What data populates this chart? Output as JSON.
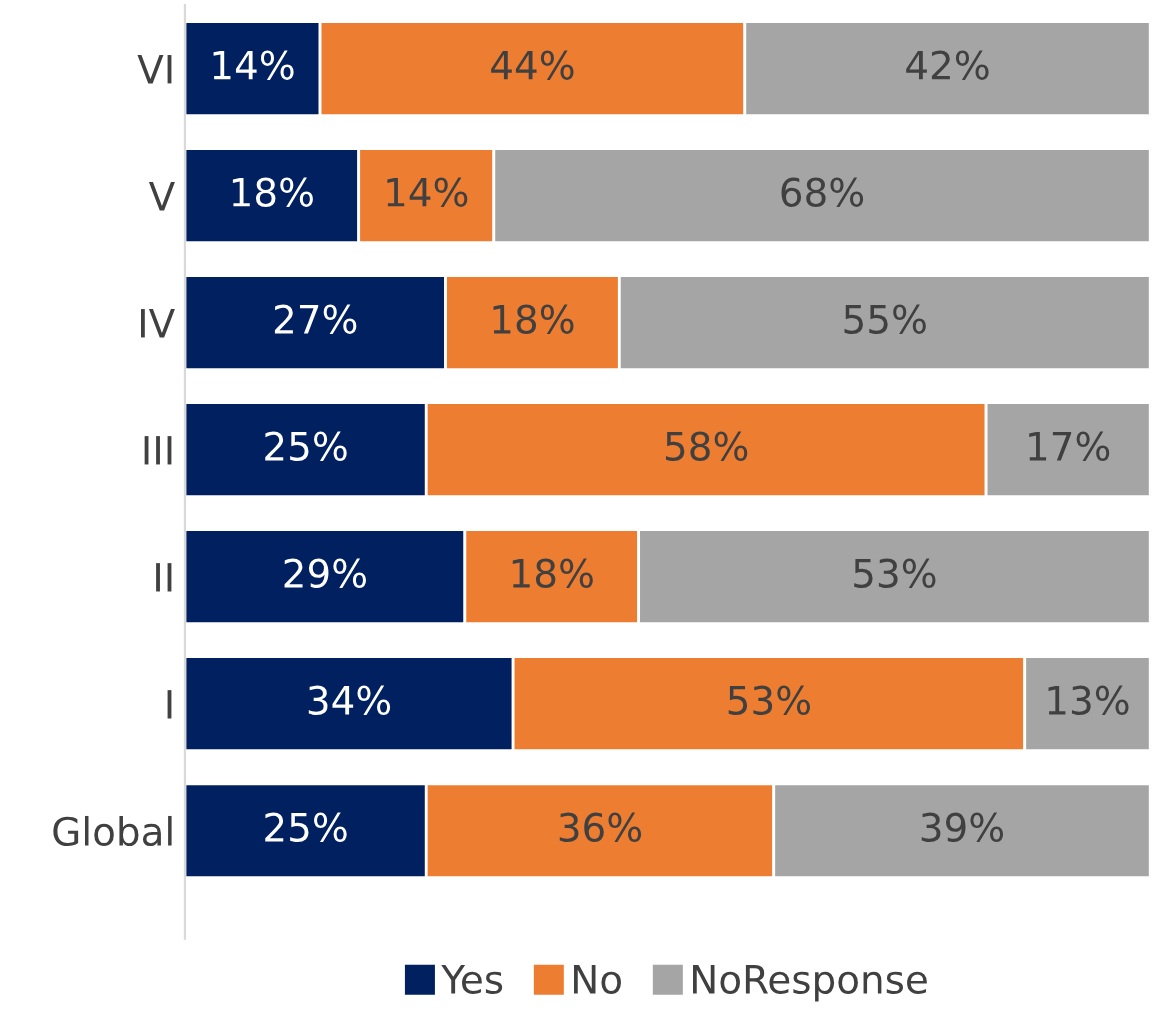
{
  "chart_data": {
    "type": "bar",
    "orientation": "horizontal",
    "stacked": true,
    "categories": [
      "VI",
      "V",
      "IV",
      "III",
      "II",
      "I",
      "Global"
    ],
    "series": [
      {
        "name": "Yes",
        "color": "#002060",
        "values": [
          14,
          18,
          27,
          25,
          29,
          34,
          25
        ],
        "value_labels": [
          "14%",
          "18%",
          "27%",
          "25%",
          "29%",
          "34%",
          "25%"
        ]
      },
      {
        "name": "No",
        "color": "#ed7d31",
        "values": [
          44,
          14,
          18,
          58,
          18,
          53,
          36
        ],
        "value_labels": [
          "44%",
          "14%",
          "18%",
          "58%",
          "18%",
          "53%",
          "36%"
        ]
      },
      {
        "name": "NoResponse",
        "color": "#a5a5a5",
        "values": [
          42,
          68,
          55,
          17,
          53,
          13,
          39
        ],
        "value_labels": [
          "42%",
          "68%",
          "55%",
          "17%",
          "53%",
          "13%",
          "39%"
        ]
      }
    ],
    "xlim": [
      0,
      100
    ],
    "tick_labels": "y",
    "grid": false,
    "legend": "bottom"
  }
}
